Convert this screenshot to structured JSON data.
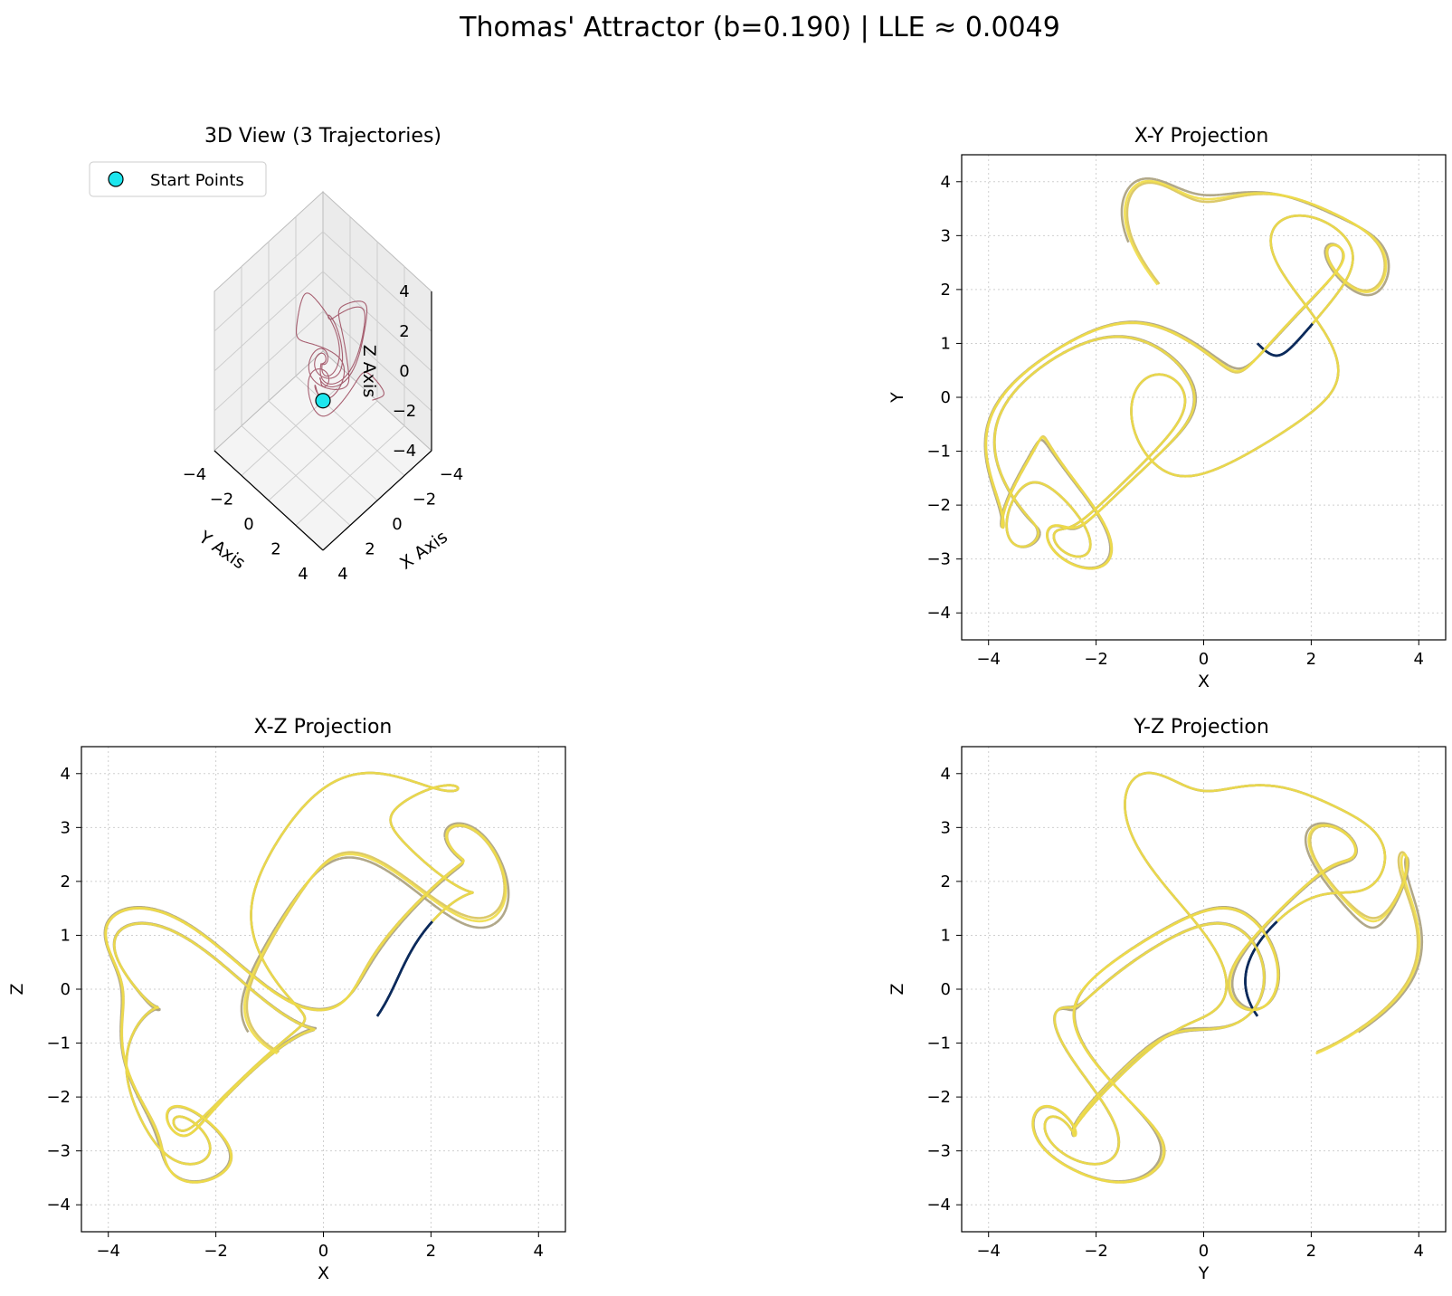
{
  "figure": {
    "title": "Thomas' Attractor (b=0.190) | LLE ≈ 0.0049"
  },
  "colors": {
    "dark_navy": "#0b2a5b",
    "olive_khaki": "#a89f7c",
    "yellow": "#f0dd48",
    "gold": "#d8c35a",
    "maroon": "#8f3047",
    "start_marker": "#1de6ee",
    "grid": "#cfcfcf"
  },
  "chart_data": [
    {
      "id": "view3d",
      "type": "line",
      "title": "3D View (3 Trajectories)",
      "xlabel": "X Axis",
      "ylabel": "Y Axis",
      "zlabel": "Z Axis",
      "xlim": [
        -4,
        4
      ],
      "ylim": [
        -4,
        4
      ],
      "zlim": [
        -4,
        4
      ],
      "x_ticks": [
        "−4",
        "−2",
        "0",
        "2",
        "4"
      ],
      "y_ticks": [
        "−4",
        "−2",
        "0",
        "2",
        "4"
      ],
      "z_ticks": [
        "4",
        "2",
        "0",
        "−2",
        "−4"
      ],
      "legend": {
        "placement": "upper-left",
        "entries": [
          "Start Points"
        ]
      },
      "start_point": {
        "x": 1.0,
        "y": 1.0,
        "z": -0.5
      },
      "grid": true
    },
    {
      "id": "xy",
      "type": "line",
      "title": "X-Y Projection",
      "xlabel": "X",
      "ylabel": "Y",
      "xlim": [
        -4.5,
        4.5
      ],
      "ylim": [
        -4.5,
        4.5
      ],
      "ticks": [
        -4,
        -2,
        0,
        2,
        4
      ],
      "y_ticks_all": [
        -4,
        -3,
        -2,
        -1,
        0,
        1,
        2,
        3,
        4
      ],
      "grid": true
    },
    {
      "id": "xz",
      "type": "line",
      "title": "X-Z Projection",
      "xlabel": "X",
      "ylabel": "Z",
      "xlim": [
        -4.5,
        4.5
      ],
      "ylim": [
        -4.5,
        4.5
      ],
      "grid": true
    },
    {
      "id": "yz",
      "type": "line",
      "title": "Y-Z Projection",
      "xlabel": "Y",
      "ylabel": "Z",
      "xlim": [
        -4.5,
        4.5
      ],
      "ylim": [
        -4.5,
        4.5
      ],
      "grid": true
    }
  ]
}
